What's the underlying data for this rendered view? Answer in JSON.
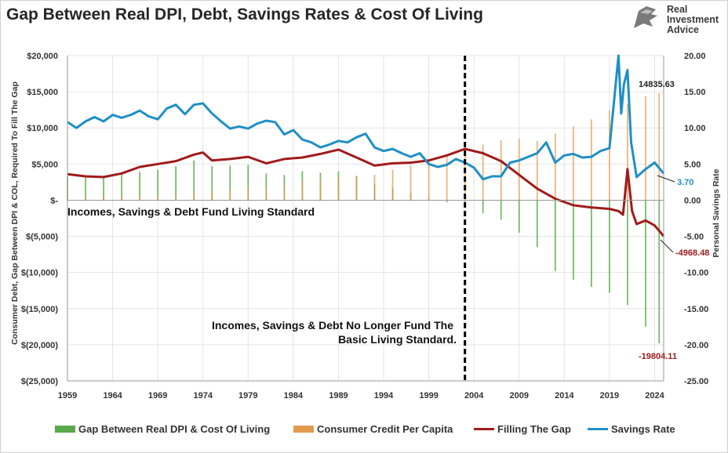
{
  "title": "Gap Between Real DPI, Debt, Savings Rates & Cost Of Living",
  "logo": {
    "line1": "Real",
    "line2": "Investment",
    "line3": "Advice"
  },
  "colors": {
    "gap": "#59a84a",
    "credit": "#e39a4c",
    "filling": "#a11a1a",
    "savings": "#1f8fc6",
    "divider": "#000000"
  },
  "chart_data": {
    "type": "bar",
    "xlabel": "",
    "ylabel": "Consumer Debt, Gap Between DPI & COL, Required To Fill The Gap",
    "y2label": "Personal Savings Rate",
    "xlim": [
      1959,
      2025
    ],
    "ylim": [
      -25000,
      20000
    ],
    "y2lim": [
      -25,
      20
    ],
    "x_ticks": [
      "1959",
      "1964",
      "1969",
      "1974",
      "1979",
      "1984",
      "1989",
      "1994",
      "1999",
      "2004",
      "2009",
      "2014",
      "2019",
      "2024"
    ],
    "y_ticks": [
      "$20,000",
      "$15,000",
      "$10,000",
      "$5,000",
      "$-",
      "$(5,000)",
      "$(10,000)",
      "$(15,000)",
      "$(20,000)",
      "$(25,000)"
    ],
    "y2_ticks": [
      "20.00",
      "15.00",
      "10.00",
      "5.00",
      "0.00",
      "-5.00",
      "-10.00",
      "-15.00",
      "-20.00",
      "-25.00"
    ],
    "vertical_marker_year": 2003,
    "annotations": {
      "left_text": "Incomes, Savings & Debt Fund Living Standard",
      "right_text_line1": "Incomes, Savings & Debt No Longer Fund The",
      "right_text_line2": "Basic Living Standard.",
      "credit_end_label": "14835.63",
      "savings_end_label": "3.70",
      "filling_end_label": "-4968.48",
      "gap_end_label": "-19804.11"
    },
    "series": [
      {
        "name": "Gap Between Real DPI & Cost Of Living",
        "type": "bar",
        "axis": "left",
        "x": [
          1959,
          1961,
          1963,
          1965,
          1967,
          1969,
          1971,
          1973,
          1975,
          1977,
          1979,
          1981,
          1983,
          1985,
          1987,
          1989,
          1991,
          1993,
          1995,
          1997,
          1999,
          2001,
          2003,
          2005,
          2007,
          2009,
          2011,
          2013,
          2015,
          2017,
          2019,
          2021,
          2023,
          2024.5
        ],
        "values": [
          3300,
          3100,
          3300,
          3600,
          3900,
          4200,
          4700,
          5500,
          4700,
          4800,
          4900,
          3700,
          3500,
          4000,
          3800,
          4000,
          3300,
          2300,
          1700,
          1000,
          400,
          -300,
          -800,
          -1800,
          -2700,
          -4500,
          -6500,
          -9800,
          -11000,
          -12000,
          -12800,
          -14500,
          -17500,
          -19804
        ]
      },
      {
        "name": "Consumer Credit Per Capita",
        "type": "bar",
        "axis": "left",
        "x": [
          1959,
          1961,
          1963,
          1965,
          1967,
          1969,
          1971,
          1973,
          1975,
          1977,
          1979,
          1981,
          1983,
          1985,
          1987,
          1989,
          1991,
          1993,
          1995,
          1997,
          1999,
          2001,
          2003,
          2005,
          2007,
          2009,
          2011,
          2013,
          2015,
          2017,
          2019,
          2021,
          2023,
          2024.5
        ],
        "values": [
          300,
          350,
          450,
          550,
          650,
          800,
          900,
          1100,
          1250,
          1450,
          1700,
          1850,
          2100,
          2600,
          3000,
          3300,
          3400,
          3500,
          4200,
          4900,
          5500,
          6300,
          7100,
          7700,
          8300,
          8500,
          8200,
          9200,
          10200,
          11200,
          12400,
          13300,
          14400,
          14836
        ]
      },
      {
        "name": "Filling The Gap",
        "type": "line",
        "axis": "left",
        "x": [
          1959,
          1961,
          1963,
          1965,
          1967,
          1969,
          1971,
          1973,
          1974,
          1975,
          1977,
          1979,
          1981,
          1983,
          1985,
          1987,
          1989,
          1991,
          1993,
          1995,
          1997,
          1999,
          2001,
          2003,
          2005,
          2007,
          2009,
          2011,
          2013,
          2015,
          2017,
          2019,
          2020,
          2020.5,
          2021,
          2021.5,
          2022,
          2023,
          2024,
          2025
        ],
        "values": [
          3600,
          3300,
          3200,
          3700,
          4600,
          5000,
          5400,
          6300,
          6600,
          5500,
          5700,
          6000,
          5100,
          5700,
          5900,
          6400,
          7000,
          5900,
          4800,
          5100,
          5200,
          5500,
          6200,
          7100,
          6500,
          5400,
          3500,
          1600,
          200,
          -700,
          -1000,
          -1200,
          -1500,
          -2000,
          4300,
          -1500,
          -3300,
          -2800,
          -3500,
          -4968
        ]
      },
      {
        "name": "Savings Rate",
        "type": "line",
        "axis": "right",
        "x": [
          1959,
          1960,
          1961,
          1962,
          1963,
          1964,
          1965,
          1966,
          1967,
          1968,
          1969,
          1970,
          1971,
          1972,
          1973,
          1974,
          1975,
          1976,
          1977,
          1978,
          1979,
          1980,
          1981,
          1982,
          1983,
          1984,
          1985,
          1986,
          1987,
          1988,
          1989,
          1990,
          1991,
          1992,
          1993,
          1994,
          1995,
          1996,
          1997,
          1998,
          1999,
          2000,
          2001,
          2002,
          2003,
          2004,
          2005,
          2006,
          2007,
          2008,
          2009,
          2010,
          2011,
          2012,
          2013,
          2014,
          2015,
          2016,
          2017,
          2018,
          2019,
          2020,
          2020.3,
          2020.6,
          2021,
          2021.4,
          2022,
          2023,
          2024,
          2025
        ],
        "values": [
          10.8,
          10.0,
          10.9,
          11.5,
          10.9,
          11.8,
          11.4,
          11.8,
          12.4,
          11.6,
          11.2,
          12.7,
          13.2,
          11.9,
          13.2,
          13.4,
          12.0,
          10.9,
          9.9,
          10.2,
          9.9,
          10.6,
          11.0,
          10.8,
          9.1,
          9.7,
          8.4,
          8.0,
          7.3,
          7.7,
          8.2,
          8.0,
          8.7,
          9.2,
          7.3,
          6.8,
          7.1,
          6.5,
          6.0,
          6.5,
          5.0,
          4.6,
          4.9,
          5.7,
          5.2,
          4.5,
          2.9,
          3.3,
          3.3,
          5.2,
          5.5,
          6.0,
          6.5,
          8.0,
          5.2,
          6.2,
          6.4,
          5.9,
          6.0,
          6.8,
          7.2,
          20.0,
          12.0,
          16.0,
          18.0,
          8.0,
          3.2,
          4.3,
          5.2,
          3.7
        ]
      }
    ]
  },
  "legend": [
    {
      "label": "Gap Between Real DPI & Cost Of Living",
      "color": "#59a84a",
      "kind": "bar"
    },
    {
      "label": "Consumer Credit Per Capita",
      "color": "#e39a4c",
      "kind": "bar"
    },
    {
      "label": "Filling The Gap",
      "color": "#a11a1a",
      "kind": "line"
    },
    {
      "label": "Savings Rate",
      "color": "#1f8fc6",
      "kind": "line"
    }
  ]
}
